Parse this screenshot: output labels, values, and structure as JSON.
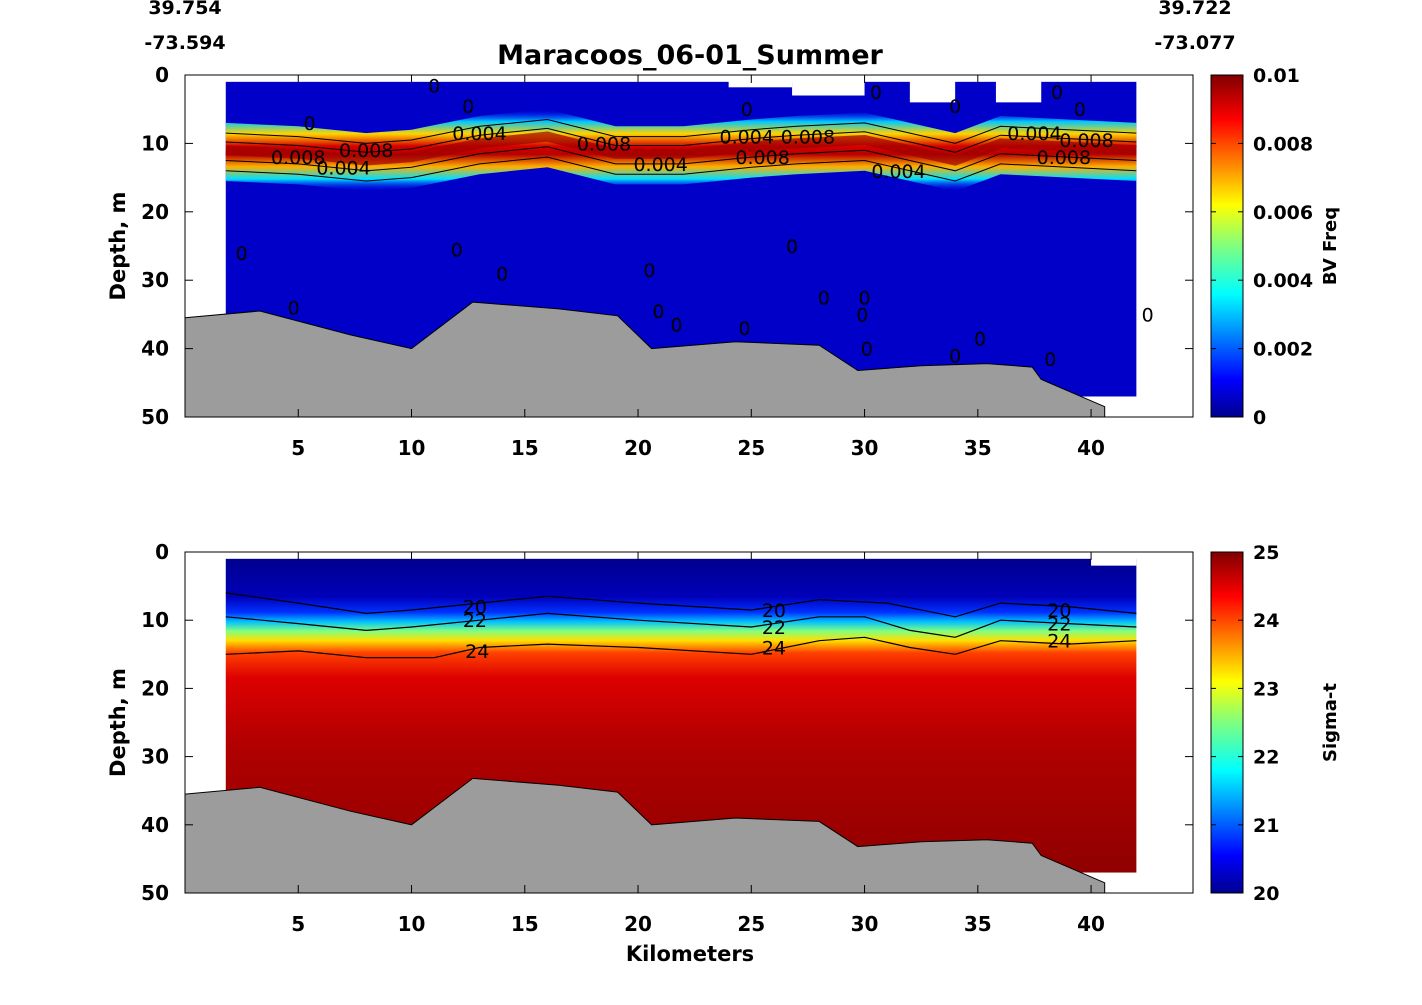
{
  "chart_data": [
    {
      "type": "heatmap",
      "title": "Maracoos_06-01_Summer",
      "corner_labels": {
        "start_lat": "39.754",
        "start_lon": "-73.594",
        "end_lat": "39.722",
        "end_lon": "-73.077"
      },
      "xlabel": "",
      "ylabel": "Depth, m",
      "colorbar_label": "BV Freq",
      "xlim": [
        0,
        44.5
      ],
      "ylim": [
        0,
        50
      ],
      "x_ticks": [
        5,
        10,
        15,
        20,
        25,
        30,
        35,
        40
      ],
      "y_ticks": [
        0,
        10,
        20,
        30,
        40,
        50
      ],
      "colorbar_ticks": [
        "0",
        "0.002",
        "0.004",
        "0.006",
        "0.008",
        "0.01"
      ],
      "colorbar_range": [
        0,
        0.01
      ],
      "data_extent_km": [
        1.8,
        42.0
      ],
      "cline_profile": [
        {
          "x": 1.8,
          "y": 11.0
        },
        {
          "x": 5,
          "y": 11.5
        },
        {
          "x": 8,
          "y": 12.5
        },
        {
          "x": 10,
          "y": 12.0
        },
        {
          "x": 13,
          "y": 10.0
        },
        {
          "x": 16,
          "y": 9.0
        },
        {
          "x": 19,
          "y": 11.5
        },
        {
          "x": 22,
          "y": 11.5
        },
        {
          "x": 25,
          "y": 10.5
        },
        {
          "x": 27,
          "y": 10.0
        },
        {
          "x": 30,
          "y": 9.5
        },
        {
          "x": 32,
          "y": 11.0
        },
        {
          "x": 34,
          "y": 12.5
        },
        {
          "x": 36,
          "y": 10.0
        },
        {
          "x": 39,
          "y": 10.5
        },
        {
          "x": 42,
          "y": 11.0
        }
      ],
      "contour_labels": [
        {
          "text": "0",
          "x": 11.0,
          "y": 1.5
        },
        {
          "text": "0",
          "x": 12.5,
          "y": 4.5
        },
        {
          "text": "0",
          "x": 5.5,
          "y": 7.0
        },
        {
          "text": "0.004",
          "x": 13.0,
          "y": 8.5
        },
        {
          "text": "0.008",
          "x": 8.0,
          "y": 11.0
        },
        {
          "text": "0.008",
          "x": 5.0,
          "y": 12.0
        },
        {
          "text": "0.004",
          "x": 7.0,
          "y": 13.5
        },
        {
          "text": "0.008",
          "x": 18.5,
          "y": 10.0
        },
        {
          "text": "0.004",
          "x": 21.0,
          "y": 13.0
        },
        {
          "text": "0",
          "x": 24.8,
          "y": 5.0
        },
        {
          "text": "0.004",
          "x": 24.8,
          "y": 9.0
        },
        {
          "text": "0.008",
          "x": 27.5,
          "y": 9.0
        },
        {
          "text": "0.008",
          "x": 25.5,
          "y": 12.0
        },
        {
          "text": "0",
          "x": 30.5,
          "y": 2.5
        },
        {
          "text": "0",
          "x": 34.0,
          "y": 4.5
        },
        {
          "text": "0.004",
          "x": 31.5,
          "y": 14.0
        },
        {
          "text": "0",
          "x": 38.5,
          "y": 2.5
        },
        {
          "text": "0",
          "x": 39.5,
          "y": 5.0
        },
        {
          "text": "0.004",
          "x": 37.5,
          "y": 8.5
        },
        {
          "text": "0.008",
          "x": 39.8,
          "y": 9.5
        },
        {
          "text": "0.008",
          "x": 38.8,
          "y": 12.0
        },
        {
          "text": "0",
          "x": 2.5,
          "y": 26.0
        },
        {
          "text": "0",
          "x": 4.8,
          "y": 34.0
        },
        {
          "text": "0",
          "x": 12.0,
          "y": 25.5
        },
        {
          "text": "0",
          "x": 14.0,
          "y": 29.0
        },
        {
          "text": "0",
          "x": 20.5,
          "y": 28.5
        },
        {
          "text": "0",
          "x": 26.8,
          "y": 25.0
        },
        {
          "text": "0",
          "x": 20.9,
          "y": 34.5
        },
        {
          "text": "0",
          "x": 21.7,
          "y": 36.5
        },
        {
          "text": "0",
          "x": 24.7,
          "y": 37.0
        },
        {
          "text": "0",
          "x": 28.2,
          "y": 32.5
        },
        {
          "text": "0",
          "x": 30.0,
          "y": 32.5
        },
        {
          "text": "0",
          "x": 29.9,
          "y": 35.0
        },
        {
          "text": "0",
          "x": 30.1,
          "y": 40.0
        },
        {
          "text": "0",
          "x": 35.1,
          "y": 38.5
        },
        {
          "text": "0",
          "x": 34.0,
          "y": 41.0
        },
        {
          "text": "0",
          "x": 38.2,
          "y": 41.5
        },
        {
          "text": "0",
          "x": 42.5,
          "y": 35.0
        }
      ],
      "bottom_profile": [
        {
          "x": 0,
          "y": 35.5
        },
        {
          "x": 3.3,
          "y": 34.5
        },
        {
          "x": 7.3,
          "y": 38.0
        },
        {
          "x": 10,
          "y": 40.0
        },
        {
          "x": 12.7,
          "y": 33.2
        },
        {
          "x": 16.5,
          "y": 34.2
        },
        {
          "x": 19.1,
          "y": 35.2
        },
        {
          "x": 20.6,
          "y": 40.0
        },
        {
          "x": 24.3,
          "y": 39.0
        },
        {
          "x": 28.0,
          "y": 39.5
        },
        {
          "x": 29.7,
          "y": 43.2
        },
        {
          "x": 32.5,
          "y": 42.5
        },
        {
          "x": 35.4,
          "y": 42.2
        },
        {
          "x": 37.4,
          "y": 42.7
        },
        {
          "x": 37.8,
          "y": 44.5
        },
        {
          "x": 40.6,
          "y": 48.5
        },
        {
          "x": 40.6,
          "y": 50
        },
        {
          "x": 0,
          "y": 50
        }
      ]
    },
    {
      "type": "heatmap",
      "xlabel": "Kilometers",
      "ylabel": "Depth, m",
      "colorbar_label": "Sigma-t",
      "xlim": [
        0,
        44.5
      ],
      "ylim": [
        0,
        50
      ],
      "x_ticks": [
        5,
        10,
        15,
        20,
        25,
        30,
        35,
        40
      ],
      "y_ticks": [
        0,
        10,
        20,
        30,
        40,
        50
      ],
      "colorbar_ticks": [
        "20",
        "21",
        "22",
        "23",
        "24",
        "25"
      ],
      "colorbar_range": [
        20,
        25
      ],
      "data_extent_km": [
        1.8,
        42.0
      ],
      "contour_levels": [
        {
          "value": 20,
          "points": [
            {
              "x": 1.8,
              "y": 6.0
            },
            {
              "x": 5,
              "y": 7.5
            },
            {
              "x": 8,
              "y": 9.0
            },
            {
              "x": 10,
              "y": 8.5
            },
            {
              "x": 13,
              "y": 7.5
            },
            {
              "x": 16,
              "y": 6.5
            },
            {
              "x": 20,
              "y": 7.5
            },
            {
              "x": 25,
              "y": 8.5
            },
            {
              "x": 28,
              "y": 7.0
            },
            {
              "x": 31,
              "y": 7.5
            },
            {
              "x": 34,
              "y": 9.5
            },
            {
              "x": 36,
              "y": 7.5
            },
            {
              "x": 39,
              "y": 8.0
            },
            {
              "x": 42,
              "y": 9.0
            }
          ]
        },
        {
          "value": 22,
          "points": [
            {
              "x": 1.8,
              "y": 9.5
            },
            {
              "x": 5,
              "y": 10.5
            },
            {
              "x": 8,
              "y": 11.5
            },
            {
              "x": 10,
              "y": 11.0
            },
            {
              "x": 13,
              "y": 10.0
            },
            {
              "x": 16,
              "y": 9.0
            },
            {
              "x": 20,
              "y": 10.0
            },
            {
              "x": 25,
              "y": 11.0
            },
            {
              "x": 28,
              "y": 9.5
            },
            {
              "x": 30,
              "y": 9.5
            },
            {
              "x": 32,
              "y": 11.5
            },
            {
              "x": 34,
              "y": 12.5
            },
            {
              "x": 36,
              "y": 10.0
            },
            {
              "x": 39,
              "y": 10.5
            },
            {
              "x": 42,
              "y": 11.0
            }
          ]
        },
        {
          "value": 24,
          "points": [
            {
              "x": 1.8,
              "y": 15.0
            },
            {
              "x": 5,
              "y": 14.5
            },
            {
              "x": 8,
              "y": 15.5
            },
            {
              "x": 11,
              "y": 15.5
            },
            {
              "x": 13,
              "y": 14.0
            },
            {
              "x": 16,
              "y": 13.5
            },
            {
              "x": 20,
              "y": 14.0
            },
            {
              "x": 25,
              "y": 15.0
            },
            {
              "x": 28,
              "y": 13.0
            },
            {
              "x": 30,
              "y": 12.5
            },
            {
              "x": 32,
              "y": 14.0
            },
            {
              "x": 34,
              "y": 15.0
            },
            {
              "x": 36,
              "y": 13.0
            },
            {
              "x": 39,
              "y": 13.5
            },
            {
              "x": 42,
              "y": 13.0
            }
          ]
        }
      ],
      "contour_labels": [
        {
          "text": "20",
          "x": 12.8,
          "y": 8.0
        },
        {
          "text": "22",
          "x": 12.8,
          "y": 10.0
        },
        {
          "text": "24",
          "x": 12.9,
          "y": 14.5
        },
        {
          "text": "20",
          "x": 26.0,
          "y": 8.5
        },
        {
          "text": "22",
          "x": 26.0,
          "y": 11.0
        },
        {
          "text": "24",
          "x": 26.0,
          "y": 14.0
        },
        {
          "text": "20",
          "x": 38.6,
          "y": 8.5
        },
        {
          "text": "22",
          "x": 38.6,
          "y": 10.5
        },
        {
          "text": "24",
          "x": 38.6,
          "y": 13.0
        }
      ],
      "bottom_profile": [
        {
          "x": 0,
          "y": 35.5
        },
        {
          "x": 3.3,
          "y": 34.5
        },
        {
          "x": 7.3,
          "y": 38.0
        },
        {
          "x": 10,
          "y": 40.0
        },
        {
          "x": 12.7,
          "y": 33.2
        },
        {
          "x": 16.5,
          "y": 34.2
        },
        {
          "x": 19.1,
          "y": 35.2
        },
        {
          "x": 20.6,
          "y": 40.0
        },
        {
          "x": 24.3,
          "y": 39.0
        },
        {
          "x": 28.0,
          "y": 39.5
        },
        {
          "x": 29.7,
          "y": 43.2
        },
        {
          "x": 32.5,
          "y": 42.5
        },
        {
          "x": 35.4,
          "y": 42.2
        },
        {
          "x": 37.4,
          "y": 42.7
        },
        {
          "x": 37.8,
          "y": 44.5
        },
        {
          "x": 40.6,
          "y": 48.5
        },
        {
          "x": 40.6,
          "y": 50
        },
        {
          "x": 0,
          "y": 50
        }
      ]
    }
  ]
}
